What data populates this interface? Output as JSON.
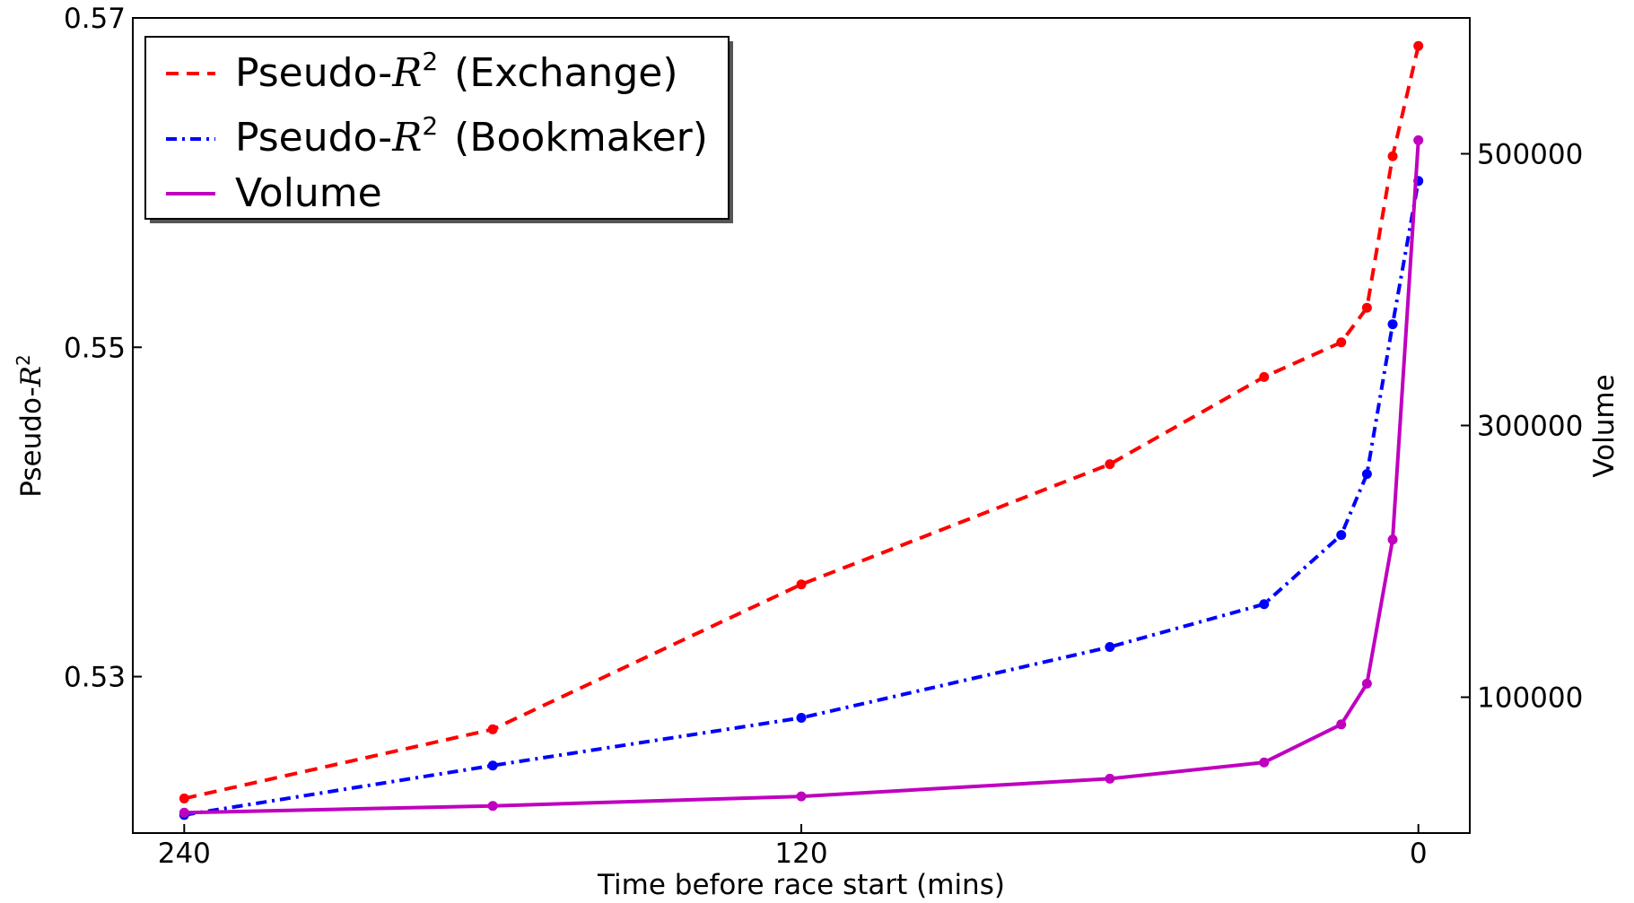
{
  "chart_data": {
    "type": "line",
    "x_axis": {
      "label": "Time before race start (mins)",
      "range": [
        250,
        -10
      ],
      "reversed": true,
      "ticks": [
        240,
        120,
        0
      ]
    },
    "y_axis_left": {
      "label_prefix": "Pseudo-",
      "label_var": "R",
      "label_sup": "2",
      "range": [
        0.5205,
        0.57
      ],
      "ticks": [
        0.53,
        0.55,
        0.57
      ]
    },
    "y_axis_right": {
      "label": "Volume",
      "range": [
        0,
        600000
      ],
      "ticks": [
        100000,
        300000,
        500000
      ]
    },
    "x": [
      240,
      180,
      120,
      60,
      30,
      15,
      10,
      5,
      0
    ],
    "series": [
      {
        "name_prefix": "Pseudo-",
        "name_var": "R",
        "name_sup": "2",
        "name_suffix": "(Exchange)",
        "axis": "left",
        "color": "#ff0000",
        "style": "dashed",
        "values": [
          0.5226,
          0.5268,
          0.5356,
          0.5429,
          0.5482,
          0.5503,
          0.5524,
          0.5616,
          0.5683
        ]
      },
      {
        "name_prefix": "Pseudo-",
        "name_var": "R",
        "name_sup": "2",
        "name_suffix": "(Bookmaker)",
        "axis": "left",
        "color": "#0000ff",
        "style": "dashdot",
        "values": [
          0.5216,
          0.5246,
          0.5275,
          0.5318,
          0.5344,
          0.5386,
          0.5423,
          0.5514,
          0.5601
        ]
      },
      {
        "name": "Volume",
        "axis": "right",
        "color": "#bf00bf",
        "style": "solid",
        "values": [
          15000,
          20000,
          27000,
          40000,
          52000,
          80000,
          110000,
          216000,
          510000
        ]
      }
    ],
    "legend": "top-left",
    "grid": false
  }
}
